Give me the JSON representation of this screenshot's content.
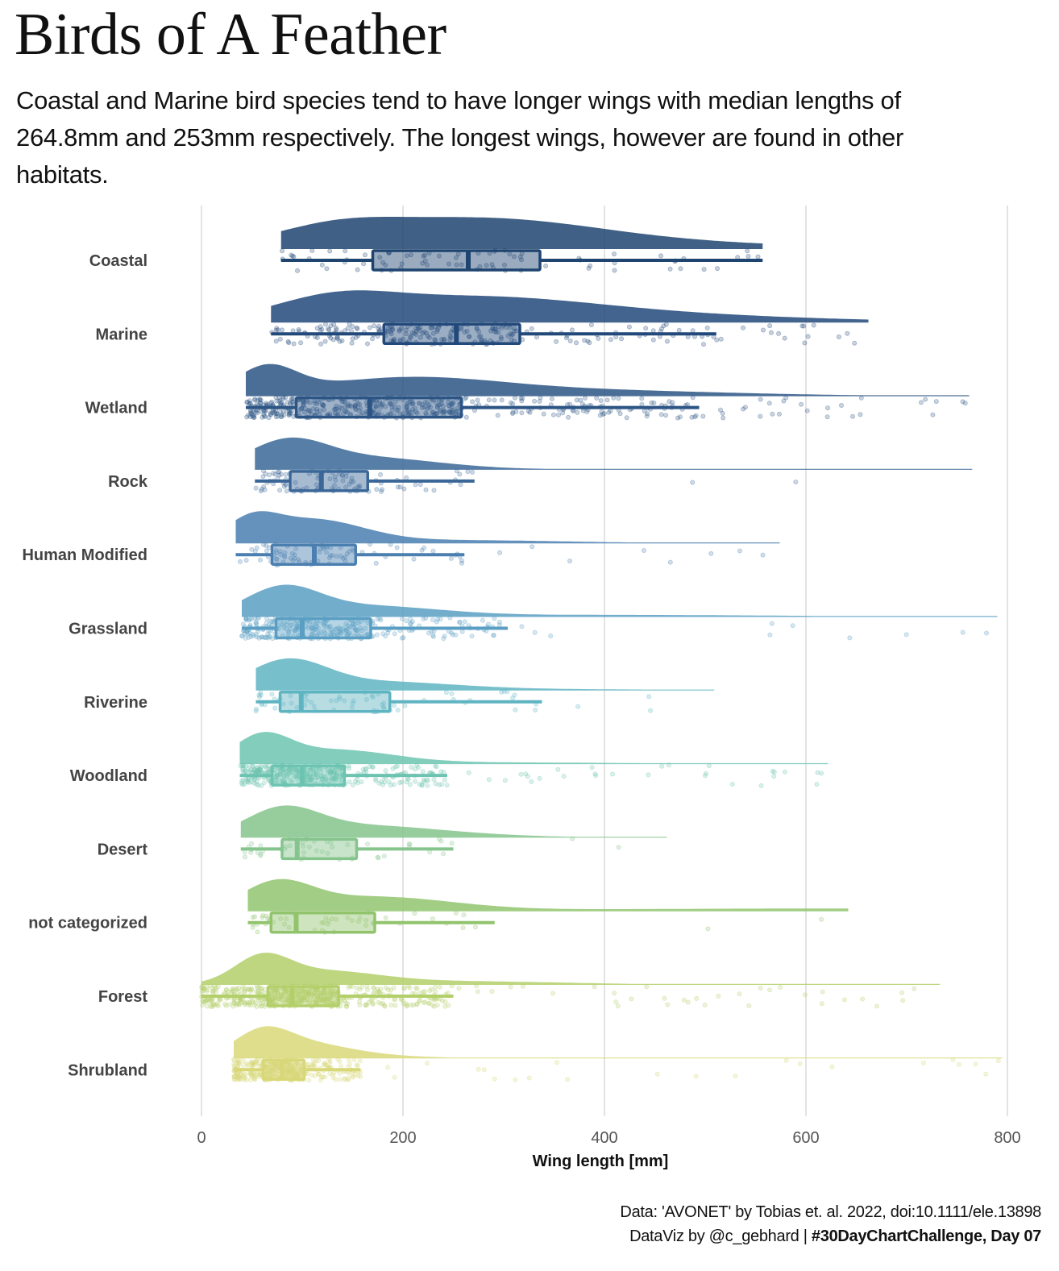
{
  "header": {
    "title": "Birds of A Feather",
    "subtitle": "Coastal and Marine bird species tend to have longer wings with median lengths of 264.8mm and 253mm respectively. The longest wings, however are found in other habitats."
  },
  "caption": {
    "line1": "Data: 'AVONET' by Tobias et. al. 2022, doi:10.1111/ele.13898",
    "line2_prefix": "DataViz by @c_gebhard | ",
    "line2_bold": "#30DayChartChallenge, Day 07"
  },
  "chart_data": {
    "type": "raincloud",
    "title": "Birds of A Feather",
    "xlabel": "Wing length [mm]",
    "ylabel": "",
    "xlim": [
      0,
      800
    ],
    "xticks": [
      0,
      200,
      400,
      600,
      800
    ],
    "grid": "vertical major",
    "categories": [
      "Coastal",
      "Marine",
      "Wetland",
      "Rock",
      "Human Modified",
      "Grassland",
      "Riverine",
      "Woodland",
      "Desert",
      "not categorized",
      "Forest",
      "Shrubland"
    ],
    "series": [
      {
        "name": "Coastal",
        "color": "#1e4470",
        "whisker_low": 79,
        "q1": 170,
        "median": 264.8,
        "q3": 336,
        "whisker_high": 557,
        "max": 557,
        "min": 79,
        "density_peaks": [
          [
            130,
            0.35
          ],
          [
            270,
            0.75
          ],
          [
            450,
            0.12
          ]
        ],
        "n_points": 80
      },
      {
        "name": "Marine",
        "color": "#22497a",
        "whisker_low": 69,
        "q1": 181,
        "median": 253,
        "q3": 316,
        "whisker_high": 511,
        "max": 662,
        "min": 69,
        "density_peaks": [
          [
            130,
            0.4
          ],
          [
            260,
            0.45
          ],
          [
            400,
            0.2
          ]
        ],
        "n_points": 260
      },
      {
        "name": "Wetland",
        "color": "#2c5585",
        "whisker_low": 44,
        "q1": 94,
        "median": 167,
        "q3": 258,
        "whisker_high": 494,
        "max": 762,
        "min": 44,
        "density_peaks": [
          [
            65,
            0.6
          ],
          [
            200,
            0.35
          ],
          [
            350,
            0.15
          ]
        ],
        "n_points": 520
      },
      {
        "name": "Rock",
        "color": "#3a6797",
        "whisker_low": 53,
        "q1": 88,
        "median": 119,
        "q3": 165,
        "whisker_high": 271,
        "max": 765,
        "min": 53,
        "density_peaks": [
          [
            85,
            1.0
          ],
          [
            160,
            0.5
          ],
          [
            600,
            0.03
          ]
        ],
        "n_points": 100
      },
      {
        "name": "Human Modified",
        "color": "#4a7fb0",
        "whisker_low": 34,
        "q1": 70,
        "median": 112,
        "q3": 153,
        "whisker_high": 261,
        "max": 574,
        "min": 34,
        "density_peaks": [
          [
            50,
            0.6
          ],
          [
            110,
            0.7
          ],
          [
            250,
            0.1
          ]
        ],
        "n_points": 90
      },
      {
        "name": "Grassland",
        "color": "#5a9fc3",
        "whisker_low": 40,
        "q1": 74,
        "median": 100,
        "q3": 168,
        "whisker_high": 304,
        "max": 790,
        "min": 40,
        "density_peaks": [
          [
            80,
            1.0
          ],
          [
            160,
            0.4
          ],
          [
            400,
            0.08
          ]
        ],
        "n_points": 320
      },
      {
        "name": "Riverine",
        "color": "#5fb4c2",
        "whisker_low": 54,
        "q1": 78,
        "median": 99,
        "q3": 187,
        "whisker_high": 338,
        "max": 509,
        "min": 54,
        "density_peaks": [
          [
            85,
            1.0
          ],
          [
            170,
            0.3
          ],
          [
            320,
            0.05
          ]
        ],
        "n_points": 70
      },
      {
        "name": "Woodland",
        "color": "#6cc4b0",
        "whisker_low": 38,
        "q1": 70,
        "median": 100,
        "q3": 142,
        "whisker_high": 244,
        "max": 622,
        "min": 38,
        "density_peaks": [
          [
            60,
            0.9
          ],
          [
            130,
            0.5
          ],
          [
            300,
            0.06
          ]
        ],
        "n_points": 420
      },
      {
        "name": "Desert",
        "color": "#85c48c",
        "whisker_low": 39,
        "q1": 80,
        "median": 95,
        "q3": 154,
        "whisker_high": 250,
        "max": 462,
        "min": 39,
        "density_peaks": [
          [
            80,
            1.0
          ],
          [
            150,
            0.3
          ],
          [
            200,
            0.2
          ]
        ],
        "n_points": 50
      },
      {
        "name": "not categorized",
        "color": "#92c46e",
        "whisker_low": 46,
        "q1": 69,
        "median": 94,
        "q3": 172,
        "whisker_high": 291,
        "max": 642,
        "min": 46,
        "density_peaks": [
          [
            75,
            0.9
          ],
          [
            170,
            0.5
          ],
          [
            630,
            0.1
          ]
        ],
        "n_points": 50
      },
      {
        "name": "Forest",
        "color": "#b3cf6a",
        "whisker_low": 0,
        "q1": 66,
        "median": 90,
        "q3": 136,
        "whisker_high": 250,
        "max": 733,
        "min": 0,
        "density_peaks": [
          [
            60,
            1.0
          ],
          [
            120,
            0.5
          ],
          [
            250,
            0.15
          ]
        ],
        "n_points": 1400
      },
      {
        "name": "Shrubland",
        "color": "#d8d878",
        "whisker_low": 32,
        "q1": 61,
        "median": 80,
        "q3": 102,
        "whisker_high": 158,
        "max": 795,
        "min": 32,
        "density_peaks": [
          [
            60,
            1.0
          ],
          [
            100,
            0.6
          ],
          [
            150,
            0.12
          ]
        ],
        "n_points": 400
      }
    ]
  }
}
